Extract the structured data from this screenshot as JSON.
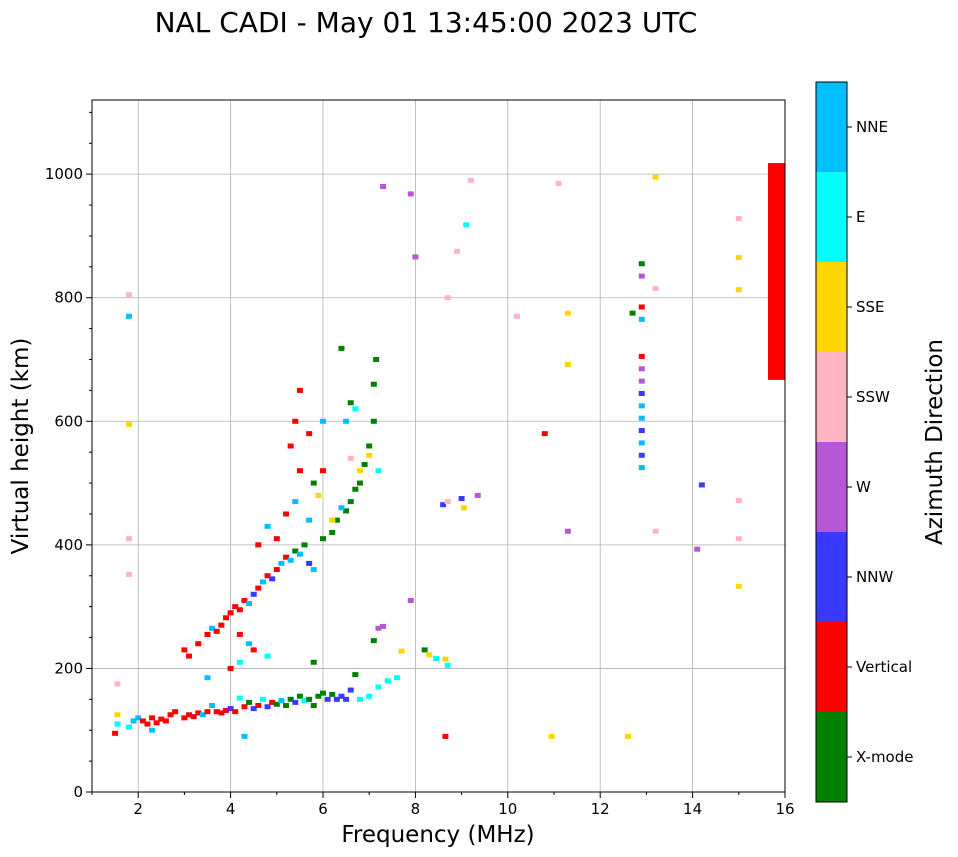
{
  "chart_data": {
    "type": "scatter",
    "title": "NAL CADI - May 01 13:45:00 2023 UTC",
    "xlabel": "Frequency (MHz)",
    "ylabel": "Virtual height (km)",
    "xlim": [
      1,
      16
    ],
    "ylim": [
      0,
      1120
    ],
    "grid": true,
    "xticks": [
      2,
      4,
      6,
      8,
      10,
      12,
      14,
      16
    ],
    "yticks": [
      0,
      200,
      400,
      600,
      800,
      1000
    ],
    "colorbar": {
      "title": "Azimuth Direction",
      "categories": [
        {
          "name": "X-mode",
          "color": "#008000"
        },
        {
          "name": "Vertical",
          "color": "#ff0000"
        },
        {
          "name": "NNW",
          "color": "#3a3aff"
        },
        {
          "name": "W",
          "color": "#b657d6"
        },
        {
          "name": "SSW",
          "color": "#ffb6c1"
        },
        {
          "name": "SSE",
          "color": "#ffd700"
        },
        {
          "name": "E",
          "color": "#00ffff"
        },
        {
          "name": "NNE",
          "color": "#00bfff"
        }
      ]
    },
    "side_bar": {
      "color": "#ff0000",
      "y_range": [
        667,
        1018
      ]
    },
    "points": [
      {
        "f": 1.5,
        "h": 95,
        "d": "Vertical"
      },
      {
        "f": 1.55,
        "h": 110,
        "d": "E"
      },
      {
        "f": 1.55,
        "h": 125,
        "d": "SSE"
      },
      {
        "f": 1.55,
        "h": 175,
        "d": "SSW"
      },
      {
        "f": 1.8,
        "h": 105,
        "d": "E"
      },
      {
        "f": 1.9,
        "h": 115,
        "d": "NNE"
      },
      {
        "f": 2.0,
        "h": 120,
        "d": "NNE"
      },
      {
        "f": 2.1,
        "h": 115,
        "d": "Vertical"
      },
      {
        "f": 2.2,
        "h": 110,
        "d": "Vertical"
      },
      {
        "f": 2.3,
        "h": 100,
        "d": "NNE"
      },
      {
        "f": 2.3,
        "h": 120,
        "d": "Vertical"
      },
      {
        "f": 2.4,
        "h": 112,
        "d": "Vertical"
      },
      {
        "f": 2.5,
        "h": 118,
        "d": "Vertical"
      },
      {
        "f": 2.6,
        "h": 115,
        "d": "Vertical"
      },
      {
        "f": 2.7,
        "h": 125,
        "d": "Vertical"
      },
      {
        "f": 2.8,
        "h": 130,
        "d": "Vertical"
      },
      {
        "f": 3.0,
        "h": 120,
        "d": "Vertical"
      },
      {
        "f": 3.1,
        "h": 125,
        "d": "Vertical"
      },
      {
        "f": 3.2,
        "h": 122,
        "d": "Vertical"
      },
      {
        "f": 3.3,
        "h": 128,
        "d": "Vertical"
      },
      {
        "f": 3.4,
        "h": 125,
        "d": "NNE"
      },
      {
        "f": 3.5,
        "h": 130,
        "d": "Vertical"
      },
      {
        "f": 3.6,
        "h": 140,
        "d": "NNE"
      },
      {
        "f": 3.7,
        "h": 130,
        "d": "Vertical"
      },
      {
        "f": 3.8,
        "h": 128,
        "d": "Vertical"
      },
      {
        "f": 3.9,
        "h": 132,
        "d": "Vertical"
      },
      {
        "f": 4.0,
        "h": 135,
        "d": "NNW"
      },
      {
        "f": 4.1,
        "h": 130,
        "d": "Vertical"
      },
      {
        "f": 4.2,
        "h": 152,
        "d": "E"
      },
      {
        "f": 4.3,
        "h": 138,
        "d": "Vertical"
      },
      {
        "f": 4.4,
        "h": 145,
        "d": "X-mode"
      },
      {
        "f": 4.5,
        "h": 135,
        "d": "NNW"
      },
      {
        "f": 4.6,
        "h": 140,
        "d": "Vertical"
      },
      {
        "f": 4.7,
        "h": 150,
        "d": "E"
      },
      {
        "f": 4.8,
        "h": 138,
        "d": "NNW"
      },
      {
        "f": 4.9,
        "h": 145,
        "d": "Vertical"
      },
      {
        "f": 5.0,
        "h": 142,
        "d": "X-mode"
      },
      {
        "f": 5.1,
        "h": 148,
        "d": "NNE"
      },
      {
        "f": 5.2,
        "h": 140,
        "d": "X-mode"
      },
      {
        "f": 5.3,
        "h": 150,
        "d": "X-mode"
      },
      {
        "f": 5.4,
        "h": 145,
        "d": "NNW"
      },
      {
        "f": 5.5,
        "h": 155,
        "d": "X-mode"
      },
      {
        "f": 5.6,
        "h": 148,
        "d": "E"
      },
      {
        "f": 5.7,
        "h": 150,
        "d": "X-mode"
      },
      {
        "f": 5.8,
        "h": 140,
        "d": "X-mode"
      },
      {
        "f": 5.9,
        "h": 155,
        "d": "X-mode"
      },
      {
        "f": 6.0,
        "h": 160,
        "d": "X-mode"
      },
      {
        "f": 6.1,
        "h": 150,
        "d": "NNW"
      },
      {
        "f": 6.2,
        "h": 158,
        "d": "X-mode"
      },
      {
        "f": 6.3,
        "h": 150,
        "d": "NNW"
      },
      {
        "f": 6.4,
        "h": 155,
        "d": "NNW"
      },
      {
        "f": 6.5,
        "h": 150,
        "d": "NNW"
      },
      {
        "f": 6.6,
        "h": 165,
        "d": "NNW"
      },
      {
        "f": 6.8,
        "h": 150,
        "d": "E"
      },
      {
        "f": 7.0,
        "h": 155,
        "d": "E"
      },
      {
        "f": 7.2,
        "h": 170,
        "d": "E"
      },
      {
        "f": 7.4,
        "h": 180,
        "d": "E"
      },
      {
        "f": 7.6,
        "h": 185,
        "d": "E"
      },
      {
        "f": 3.5,
        "h": 185,
        "d": "NNE"
      },
      {
        "f": 4.2,
        "h": 210,
        "d": "E"
      },
      {
        "f": 3.0,
        "h": 230,
        "d": "Vertical"
      },
      {
        "f": 3.1,
        "h": 220,
        "d": "Vertical"
      },
      {
        "f": 3.3,
        "h": 240,
        "d": "Vertical"
      },
      {
        "f": 3.5,
        "h": 255,
        "d": "Vertical"
      },
      {
        "f": 3.6,
        "h": 265,
        "d": "NNE"
      },
      {
        "f": 3.7,
        "h": 260,
        "d": "Vertical"
      },
      {
        "f": 3.8,
        "h": 270,
        "d": "Vertical"
      },
      {
        "f": 3.9,
        "h": 282,
        "d": "Vertical"
      },
      {
        "f": 4.0,
        "h": 290,
        "d": "Vertical"
      },
      {
        "f": 4.1,
        "h": 300,
        "d": "Vertical"
      },
      {
        "f": 4.2,
        "h": 295,
        "d": "Vertical"
      },
      {
        "f": 4.3,
        "h": 310,
        "d": "Vertical"
      },
      {
        "f": 4.4,
        "h": 305,
        "d": "NNE"
      },
      {
        "f": 4.5,
        "h": 320,
        "d": "NNW"
      },
      {
        "f": 4.6,
        "h": 330,
        "d": "Vertical"
      },
      {
        "f": 4.7,
        "h": 340,
        "d": "NNE"
      },
      {
        "f": 4.8,
        "h": 350,
        "d": "Vertical"
      },
      {
        "f": 4.9,
        "h": 345,
        "d": "NNW"
      },
      {
        "f": 5.0,
        "h": 360,
        "d": "Vertical"
      },
      {
        "f": 5.1,
        "h": 370,
        "d": "NNE"
      },
      {
        "f": 5.2,
        "h": 380,
        "d": "Vertical"
      },
      {
        "f": 5.3,
        "h": 375,
        "d": "NNE"
      },
      {
        "f": 5.4,
        "h": 390,
        "d": "X-mode"
      },
      {
        "f": 5.5,
        "h": 385,
        "d": "NNE"
      },
      {
        "f": 5.6,
        "h": 400,
        "d": "X-mode"
      },
      {
        "f": 5.7,
        "h": 370,
        "d": "NNW"
      },
      {
        "f": 5.8,
        "h": 360,
        "d": "NNE"
      },
      {
        "f": 6.0,
        "h": 410,
        "d": "X-mode"
      },
      {
        "f": 6.2,
        "h": 420,
        "d": "X-mode"
      },
      {
        "f": 6.3,
        "h": 440,
        "d": "X-mode"
      },
      {
        "f": 6.5,
        "h": 455,
        "d": "X-mode"
      },
      {
        "f": 6.6,
        "h": 470,
        "d": "X-mode"
      },
      {
        "f": 6.7,
        "h": 490,
        "d": "X-mode"
      },
      {
        "f": 6.8,
        "h": 500,
        "d": "X-mode"
      },
      {
        "f": 6.9,
        "h": 530,
        "d": "X-mode"
      },
      {
        "f": 7.0,
        "h": 560,
        "d": "X-mode"
      },
      {
        "f": 7.1,
        "h": 600,
        "d": "X-mode"
      },
      {
        "f": 7.1,
        "h": 660,
        "d": "X-mode"
      },
      {
        "f": 7.15,
        "h": 700,
        "d": "X-mode"
      },
      {
        "f": 6.6,
        "h": 630,
        "d": "X-mode"
      },
      {
        "f": 6.4,
        "h": 718,
        "d": "X-mode"
      },
      {
        "f": 4.6,
        "h": 400,
        "d": "Vertical"
      },
      {
        "f": 4.8,
        "h": 430,
        "d": "NNE"
      },
      {
        "f": 5.0,
        "h": 410,
        "d": "Vertical"
      },
      {
        "f": 5.2,
        "h": 450,
        "d": "Vertical"
      },
      {
        "f": 5.4,
        "h": 470,
        "d": "NNE"
      },
      {
        "f": 5.5,
        "h": 520,
        "d": "Vertical"
      },
      {
        "f": 5.7,
        "h": 440,
        "d": "NNE"
      },
      {
        "f": 5.8,
        "h": 500,
        "d": "X-mode"
      },
      {
        "f": 5.9,
        "h": 480,
        "d": "SSE"
      },
      {
        "f": 6.0,
        "h": 520,
        "d": "Vertical"
      },
      {
        "f": 6.2,
        "h": 440,
        "d": "SSE"
      },
      {
        "f": 6.4,
        "h": 460,
        "d": "NNE"
      },
      {
        "f": 6.6,
        "h": 540,
        "d": "SSW"
      },
      {
        "f": 6.8,
        "h": 520,
        "d": "SSE"
      },
      {
        "f": 7.0,
        "h": 545,
        "d": "SSE"
      },
      {
        "f": 7.2,
        "h": 520,
        "d": "E"
      },
      {
        "f": 5.3,
        "h": 560,
        "d": "Vertical"
      },
      {
        "f": 5.4,
        "h": 600,
        "d": "Vertical"
      },
      {
        "f": 5.5,
        "h": 650,
        "d": "Vertical"
      },
      {
        "f": 5.7,
        "h": 580,
        "d": "Vertical"
      },
      {
        "f": 6.0,
        "h": 600,
        "d": "NNE"
      },
      {
        "f": 6.5,
        "h": 600,
        "d": "NNE"
      },
      {
        "f": 6.7,
        "h": 620,
        "d": "E"
      },
      {
        "f": 4.4,
        "h": 240,
        "d": "NNE"
      },
      {
        "f": 4.5,
        "h": 230,
        "d": "Vertical"
      },
      {
        "f": 4.8,
        "h": 220,
        "d": "E"
      },
      {
        "f": 4.2,
        "h": 255,
        "d": "Vertical"
      },
      {
        "f": 4.0,
        "h": 200,
        "d": "Vertical"
      },
      {
        "f": 4.3,
        "h": 90,
        "d": "NNE"
      },
      {
        "f": 5.8,
        "h": 210,
        "d": "X-mode"
      },
      {
        "f": 6.7,
        "h": 190,
        "d": "X-mode"
      },
      {
        "f": 7.1,
        "h": 245,
        "d": "X-mode"
      },
      {
        "f": 7.2,
        "h": 265,
        "d": "W"
      },
      {
        "f": 7.3,
        "h": 268,
        "d": "W"
      },
      {
        "f": 7.7,
        "h": 228,
        "d": "SSE"
      },
      {
        "f": 7.9,
        "h": 310,
        "d": "W"
      },
      {
        "f": 8.2,
        "h": 230,
        "d": "X-mode"
      },
      {
        "f": 8.3,
        "h": 222,
        "d": "SSE"
      },
      {
        "f": 8.45,
        "h": 216,
        "d": "E"
      },
      {
        "f": 8.65,
        "h": 215,
        "d": "SSE"
      },
      {
        "f": 8.7,
        "h": 205,
        "d": "E"
      },
      {
        "f": 8.65,
        "h": 90,
        "d": "Vertical"
      },
      {
        "f": 8.6,
        "h": 465,
        "d": "NNW"
      },
      {
        "f": 8.7,
        "h": 470,
        "d": "SSW"
      },
      {
        "f": 9.0,
        "h": 475,
        "d": "NNW"
      },
      {
        "f": 9.05,
        "h": 460,
        "d": "SSE"
      },
      {
        "f": 9.35,
        "h": 480,
        "d": "W"
      },
      {
        "f": 8.7,
        "h": 800,
        "d": "SSW"
      },
      {
        "f": 8.9,
        "h": 875,
        "d": "SSW"
      },
      {
        "f": 9.1,
        "h": 918,
        "d": "E"
      },
      {
        "f": 9.2,
        "h": 990,
        "d": "SSW"
      },
      {
        "f": 7.9,
        "h": 968,
        "d": "W"
      },
      {
        "f": 8.0,
        "h": 866,
        "d": "W"
      },
      {
        "f": 7.3,
        "h": 980,
        "d": "W"
      },
      {
        "f": 1.8,
        "h": 805,
        "d": "SSW"
      },
      {
        "f": 1.8,
        "h": 770,
        "d": "NNE"
      },
      {
        "f": 1.8,
        "h": 595,
        "d": "SSE"
      },
      {
        "f": 1.8,
        "h": 410,
        "d": "SSW"
      },
      {
        "f": 1.8,
        "h": 352,
        "d": "SSW"
      },
      {
        "f": 10.2,
        "h": 770,
        "d": "SSW"
      },
      {
        "f": 10.8,
        "h": 580,
        "d": "Vertical"
      },
      {
        "f": 10.95,
        "h": 90,
        "d": "SSE"
      },
      {
        "f": 11.1,
        "h": 985,
        "d": "SSW"
      },
      {
        "f": 11.3,
        "h": 775,
        "d": "SSE"
      },
      {
        "f": 11.3,
        "h": 692,
        "d": "SSE"
      },
      {
        "f": 11.3,
        "h": 422,
        "d": "W"
      },
      {
        "f": 12.6,
        "h": 90,
        "d": "SSE"
      },
      {
        "f": 12.7,
        "h": 775,
        "d": "X-mode"
      },
      {
        "f": 13.2,
        "h": 995,
        "d": "SSE"
      },
      {
        "f": 13.2,
        "h": 815,
        "d": "SSW"
      },
      {
        "f": 13.2,
        "h": 422,
        "d": "SSW"
      },
      {
        "f": 14.2,
        "h": 497,
        "d": "NNW"
      },
      {
        "f": 14.1,
        "h": 393,
        "d": "W"
      },
      {
        "f": 15.0,
        "h": 928,
        "d": "SSW"
      },
      {
        "f": 15.0,
        "h": 865,
        "d": "SSE"
      },
      {
        "f": 15.0,
        "h": 813,
        "d": "SSE"
      },
      {
        "f": 15.0,
        "h": 472,
        "d": "SSW"
      },
      {
        "f": 15.0,
        "h": 410,
        "d": "SSW"
      },
      {
        "f": 15.0,
        "h": 333,
        "d": "SSE"
      },
      {
        "f": 12.9,
        "h": 525,
        "d": "NNE"
      },
      {
        "f": 12.9,
        "h": 545,
        "d": "NNW"
      },
      {
        "f": 12.9,
        "h": 565,
        "d": "NNE"
      },
      {
        "f": 12.9,
        "h": 585,
        "d": "NNW"
      },
      {
        "f": 12.9,
        "h": 605,
        "d": "NNE"
      },
      {
        "f": 12.9,
        "h": 625,
        "d": "NNE"
      },
      {
        "f": 12.9,
        "h": 645,
        "d": "NNW"
      },
      {
        "f": 12.9,
        "h": 665,
        "d": "W"
      },
      {
        "f": 12.9,
        "h": 685,
        "d": "W"
      },
      {
        "f": 12.9,
        "h": 705,
        "d": "Vertical"
      },
      {
        "f": 12.9,
        "h": 765,
        "d": "NNE"
      },
      {
        "f": 12.9,
        "h": 785,
        "d": "Vertical"
      },
      {
        "f": 12.9,
        "h": 835,
        "d": "W"
      },
      {
        "f": 12.9,
        "h": 855,
        "d": "X-mode"
      }
    ]
  }
}
